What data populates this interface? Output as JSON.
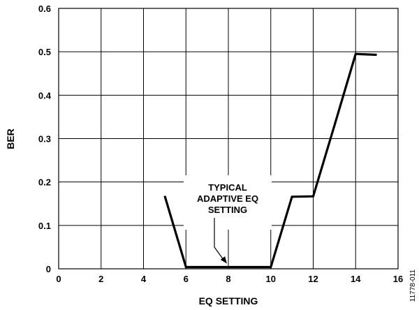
{
  "chart_data": {
    "type": "line",
    "xlabel": "EQ SETTING",
    "ylabel": "BER",
    "xlim": [
      0,
      16
    ],
    "ylim": [
      0,
      0.6
    ],
    "x_ticks": [
      "0",
      "2",
      "4",
      "6",
      "8",
      "10",
      "12",
      "14",
      "16"
    ],
    "y_ticks": [
      "0",
      "0.1",
      "0.2",
      "0.3",
      "0.4",
      "0.5",
      "0.6"
    ],
    "grid": true,
    "series": [
      {
        "x": [
          5,
          6,
          7,
          8,
          9,
          10,
          11,
          12,
          13,
          14,
          15
        ],
        "y": [
          0.168,
          0.004,
          0.004,
          0.004,
          0.004,
          0.004,
          0.166,
          0.167,
          0.33,
          0.495,
          0.493
        ]
      }
    ],
    "annotation": {
      "lines": [
        "TYPICAL",
        "ADAPTIVE EQ",
        "SETTING"
      ],
      "points_to": {
        "x": 8,
        "y": 0.004
      }
    },
    "figure_id": "11778-011"
  }
}
